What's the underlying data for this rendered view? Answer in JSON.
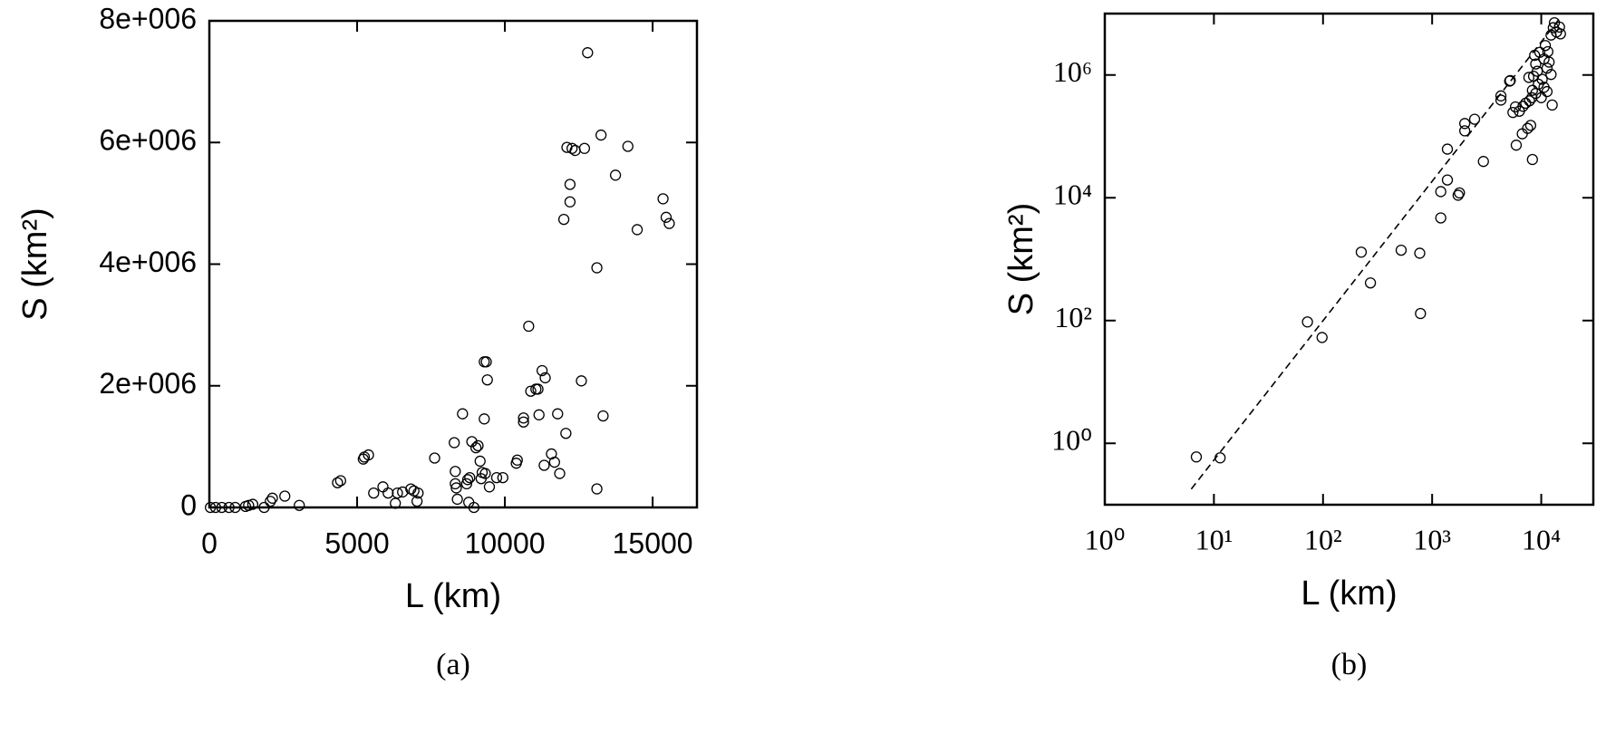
{
  "chart_data": [
    {
      "type": "scatter",
      "caption": "(a)",
      "xlabel": "L (km)",
      "ylabel": "S (km²)",
      "color": "#000000",
      "xscale": "linear",
      "yscale": "linear",
      "font": "sans",
      "xlim": [
        0,
        16500
      ],
      "ylim": [
        0,
        8000000
      ],
      "xticks": [
        0,
        5000,
        10000,
        15000
      ],
      "yticks": [
        0,
        {
          "value": 2000000,
          "label": "2e+006"
        },
        {
          "value": 4000000,
          "label": "4e+006"
        },
        {
          "value": 6000000,
          "label": "6e+006"
        },
        {
          "value": 8000000,
          "label": "8e+006"
        }
      ],
      "x": [
        35,
        210,
        420,
        664,
        874,
        1224,
        1329,
        1469,
        1854,
        2063,
        2133,
        2553,
        3043,
        4337,
        4442,
        5560,
        5210,
        5245,
        5385,
        5874,
        6049,
        6294,
        6364,
        6539,
        6818,
        6923,
        7028,
        7063,
        7623,
        8287,
        8322,
        8322,
        8357,
        8392,
        8567,
        8707,
        8742,
        8777,
        8812,
        8882,
        8952,
        9022,
        9092,
        9162,
        9197,
        9232,
        9302,
        9302,
        9337,
        9372,
        9407,
        9476,
        9721,
        9931,
        10386,
        10421,
        10631,
        10631,
        10806,
        10876,
        11050,
        11120,
        11155,
        11260,
        11330,
        11365,
        11575,
        11680,
        11785,
        11855,
        12064,
        11995,
        12100,
        12204,
        12204,
        12274,
        12379,
        12694,
        12589,
        12799,
        13114,
        13114,
        13254,
        13324,
        13743,
        14163,
        14478,
        15352,
        15457,
        15562
      ],
      "values": [
        0,
        0,
        0,
        0,
        0,
        17000,
        34000,
        51000,
        0,
        101000,
        152000,
        186000,
        34000,
        406000,
        440000,
        237000,
        795000,
        829000,
        863000,
        338000,
        237000,
        68000,
        237000,
        254000,
        304000,
        271000,
        101000,
        237000,
        812000,
        1065000,
        592000,
        389000,
        321000,
        135000,
        1539000,
        389000,
        457000,
        85000,
        490000,
        1082000,
        0,
        981000,
        1015000,
        761000,
        473000,
        575000,
        1455000,
        2394000,
        558000,
        2394000,
        2097000,
        338000,
        490000,
        490000,
        727000,
        778000,
        1471000,
        1404000,
        2979000,
        1911000,
        1945000,
        1945000,
        1522000,
        2250000,
        693000,
        2131000,
        880000,
        744000,
        1539000,
        558000,
        1218000,
        4736000,
        5920000,
        5024000,
        5311000,
        5903000,
        5869000,
        5903000,
        2081000,
        7476000,
        3940000,
        305000,
        6122000,
        1505000,
        5463000,
        5937000,
        4567000,
        5074000,
        4770000,
        4668000
      ]
    },
    {
      "type": "scatter",
      "caption": "(b)",
      "xlabel": "L (km)",
      "ylabel": "S (km²)",
      "color": "#000000",
      "xscale": "log",
      "yscale": "log",
      "font": "serif",
      "xlim": [
        1,
        30000
      ],
      "ylim": [
        0.1,
        10000000
      ],
      "xticks": [
        {
          "value": 1,
          "label": "10⁰"
        },
        {
          "value": 10,
          "label": "10¹"
        },
        {
          "value": 100,
          "label": "10²"
        },
        {
          "value": 1000,
          "label": "10³"
        },
        {
          "value": 10000,
          "label": "10⁴"
        }
      ],
      "yticks": [
        {
          "value": 1,
          "label": "10⁰"
        },
        {
          "value": 100,
          "label": "10²"
        },
        {
          "value": 10000,
          "label": "10⁴"
        },
        {
          "value": 1000000,
          "label": "10⁶"
        }
      ],
      "x": [
        6.9,
        11.4,
        72,
        98,
        224,
        272,
        520,
        770,
        782,
        1200,
        1200,
        1380,
        1380,
        1730,
        1780,
        1990,
        1990,
        2450,
        2950,
        4270,
        4270,
        5130,
        5200,
        5500,
        5800,
        5900,
        6300,
        6700,
        6800,
        7200,
        7500,
        7700,
        7800,
        8000,
        8200,
        8300,
        8300,
        8500,
        8700,
        8900,
        8900,
        9200,
        9400,
        9700,
        10000,
        10200,
        10600,
        10600,
        10900,
        11300,
        11300,
        11500,
        11800,
        12300,
        12300,
        12600,
        12900,
        13200,
        13800,
        14700,
        15000
      ],
      "values": [
        0.6,
        0.58,
        95,
        53,
        1300,
        410,
        1400,
        1250,
        130,
        4700,
        12600,
        19500,
        62000,
        11000,
        12000,
        123000,
        162000,
        190000,
        39000,
        390000,
        457000,
        794000,
        813000,
        245000,
        302000,
        72000,
        257000,
        110000,
        309000,
        347000,
        135000,
        912000,
        380000,
        151000,
        427000,
        42000,
        562000,
        955000,
        2090000,
        501000,
        1510000,
        1150000,
        708000,
        2340000,
        427000,
        851000,
        631000,
        1820000,
        3020000,
        1290000,
        537000,
        2400000,
        1620000,
        4470000,
        1020000,
        324000,
        5890000,
        7080000,
        5010000,
        6030000,
        4680000
      ],
      "fit_line": {
        "x": [
          6.2,
          14700
        ],
        "values": [
          0.18,
          8300000
        ],
        "style": "dashed"
      }
    }
  ]
}
